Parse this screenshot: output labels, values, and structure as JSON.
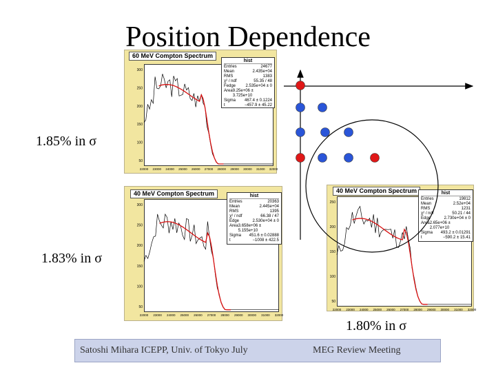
{
  "title": "Position Dependence",
  "results": [
    {
      "label": "1.85% in σ"
    },
    {
      "label": "1.83% in σ"
    },
    {
      "label": "1.80% in σ"
    }
  ],
  "histograms": [
    {
      "name": "60 MeV Compton Spectrum",
      "stats_title": "hist",
      "stats": [
        [
          "Entries",
          "24677"
        ],
        [
          "Mean",
          "2.435e+04"
        ],
        [
          "RMS",
          "1383"
        ],
        [
          "χ² / ndf",
          "55.35 / 48"
        ],
        [
          "Fedge",
          "2.535e+04 ± 0"
        ],
        [
          "Area",
          "9.25e+06 ± 3.725e+10"
        ],
        [
          "Sigma",
          "467.4 ± 0.1224"
        ],
        [
          "t",
          "−457.9 ± 45.22"
        ]
      ],
      "yticks": [
        "300",
        "250",
        "200",
        "150",
        "100",
        "50"
      ],
      "xticks": [
        "22000",
        "23000",
        "24000",
        "25000",
        "26000",
        "27000",
        "28000",
        "29000",
        "30000",
        "31000",
        "32000"
      ]
    },
    {
      "name": "40 MeV Compton Spectrum",
      "stats_title": "hist",
      "stats": [
        [
          "Entries",
          "20363"
        ],
        [
          "Mean",
          "2.445e+04"
        ],
        [
          "RMS",
          "1395"
        ],
        [
          "χ² / ndf",
          "66.38 / 47"
        ],
        [
          "Edge",
          "2.530e+04 ± 0"
        ],
        [
          "Area",
          "3.658e+06 ± 5.155e+10"
        ],
        [
          "Sigma",
          "451.6 ± 0.02888"
        ],
        [
          "t",
          "−1008 ± 422.5"
        ]
      ],
      "yticks": [
        "300",
        "250",
        "200",
        "150",
        "100",
        "50"
      ],
      "xticks": [
        "22000",
        "23000",
        "24000",
        "25000",
        "26000",
        "27000",
        "28000",
        "29000",
        "30000",
        "31000",
        "32000"
      ]
    },
    {
      "name": "40 MeV Compton Spectrum",
      "stats_title": "hist",
      "stats": [
        [
          "Entries",
          "19812"
        ],
        [
          "Mean",
          "2.52e+04"
        ],
        [
          "RMS",
          "1231"
        ],
        [
          "χ² / ndf",
          "50.21 / 44"
        ],
        [
          "Edge",
          "2.730e+04 ± 0"
        ],
        [
          "Area",
          "2.65e+06 ± 2.077e+10"
        ],
        [
          "Sigma",
          "493.2 ± 0.01291"
        ],
        [
          "t",
          "−590.2 ± 15.41"
        ]
      ],
      "yticks": [
        "250",
        "200",
        "150",
        "100",
        "50"
      ],
      "xticks": [
        "22000",
        "23000",
        "24000",
        "25000",
        "26000",
        "27000",
        "28000",
        "29000",
        "30000",
        "31000",
        "32000"
      ]
    }
  ],
  "footer": {
    "left": "Satoshi Mihara ICEPP, Univ. of Tokyo July",
    "right": "MEG Review Meeting"
  },
  "colors": {
    "red_dot": "#e01818",
    "blue_dot": "#2a55d8",
    "histogram_line": "#000000",
    "fit_line": "#d81010",
    "canvas_bg": "#f2e6a0",
    "footer_bg": "#ccd3ea"
  }
}
